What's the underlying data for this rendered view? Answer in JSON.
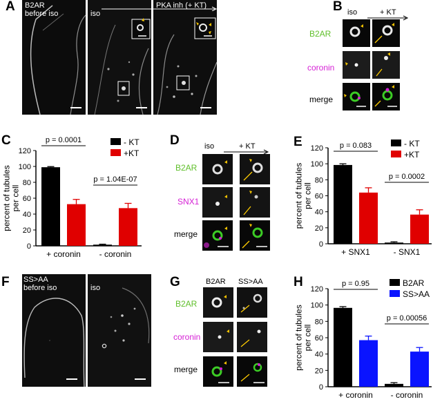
{
  "panels": {
    "A": {
      "letter": "A",
      "img1_label": "B2AR\nbefore iso",
      "img2_label": "iso",
      "arrow_label": "PKA inh (+ KT)"
    },
    "B": {
      "letter": "B",
      "col1": "iso",
      "col2": "+ KT",
      "rows": [
        "B2AR",
        "coronin",
        "merge"
      ]
    },
    "C": {
      "letter": "C"
    },
    "D": {
      "letter": "D",
      "col1": "iso",
      "col2": "+ KT",
      "rows": [
        "B2AR",
        "SNX1",
        "merge"
      ]
    },
    "E": {
      "letter": "E"
    },
    "F": {
      "letter": "F",
      "img1_label": "SS>AA\nbefore iso",
      "img2_label": "iso"
    },
    "G": {
      "letter": "G",
      "col1": "B2AR",
      "col2": "SS>AA",
      "rows": [
        "B2AR",
        "coronin",
        "merge"
      ]
    },
    "H": {
      "letter": "H"
    }
  },
  "colors": {
    "green_label": "#5fbf2a",
    "magenta_label": "#d51fd5",
    "black_bar": "#000000",
    "red_bar": "#e00000",
    "blue_bar": "#0a14ff",
    "arrowhead_yellow": "#f2c200",
    "arrow_yellow": "#ffcc00"
  },
  "chart_data": [
    {
      "panel": "C",
      "type": "bar",
      "ylabel": "percent of tubules\nper cell",
      "ylim": [
        0,
        120
      ],
      "yticks": [
        0,
        20,
        40,
        60,
        80,
        100,
        120
      ],
      "categories": [
        "+ coronin",
        "- coronin"
      ],
      "series": [
        {
          "name": "- KT",
          "values": [
            99,
            1.5
          ],
          "errors": [
            0.8,
            0.6
          ],
          "color": "#000000"
        },
        {
          "name": "+KT",
          "values": [
            52.5,
            47.5
          ],
          "errors": [
            6,
            6
          ],
          "color": "#e00000"
        }
      ],
      "annotations": [
        "p = 0.0001",
        "p = 1.04E-07"
      ],
      "legend_position": "top-right"
    },
    {
      "panel": "E",
      "type": "bar",
      "ylabel": "percent of tubules\nper cell",
      "ylim": [
        0,
        120
      ],
      "yticks": [
        0,
        20,
        40,
        60,
        80,
        100,
        120
      ],
      "categories": [
        "+ SNX1",
        "- SNX1"
      ],
      "series": [
        {
          "name": "- KT",
          "values": [
            98.5,
            1.5
          ],
          "errors": [
            1.5,
            1
          ],
          "color": "#000000"
        },
        {
          "name": "+KT",
          "values": [
            64,
            36.5
          ],
          "errors": [
            6,
            6
          ],
          "color": "#e00000"
        }
      ],
      "annotations": [
        "p = 0.083",
        "p = 0.0002"
      ],
      "legend_position": "top-right"
    },
    {
      "panel": "H",
      "type": "bar",
      "ylabel": "percent of tubules\nper cell",
      "ylim": [
        0,
        120
      ],
      "yticks": [
        0,
        20,
        40,
        60,
        80,
        100,
        120
      ],
      "categories": [
        "+ coronin",
        "- coronin"
      ],
      "series": [
        {
          "name": "B2AR",
          "values": [
            96.5,
            3.5
          ],
          "errors": [
            1.5,
            1.5
          ],
          "color": "#000000"
        },
        {
          "name": "SS>AA",
          "values": [
            57,
            43
          ],
          "errors": [
            5,
            5
          ],
          "color": "#0a14ff"
        }
      ],
      "annotations": [
        "p = 0.95",
        "p = 0.00056"
      ],
      "legend_position": "top-right"
    }
  ]
}
